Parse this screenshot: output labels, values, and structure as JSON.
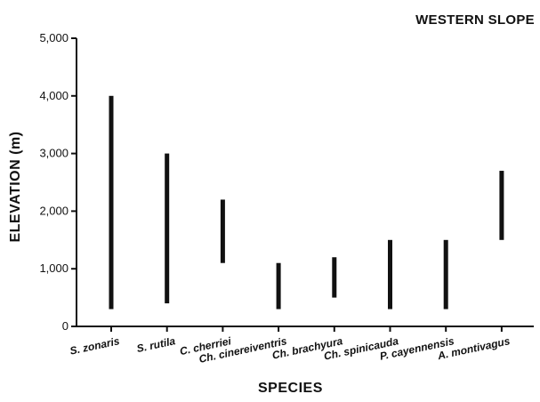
{
  "chart_data": {
    "type": "range-bar",
    "title": "WESTERN SLOPE",
    "xlabel": "SPECIES",
    "ylabel": "ELEVATION (m)",
    "ylim": [
      0,
      5000
    ],
    "yticks": [
      0,
      1000,
      2000,
      3000,
      4000,
      5000
    ],
    "ytick_labels": [
      "0",
      "1,000",
      "2,000",
      "3,000",
      "4,000",
      "5,000"
    ],
    "categories": [
      "S. zonaris",
      "S. rutila",
      "C. cherriei",
      "Ch. cinereiventris",
      "Ch. brachyura",
      "Ch. spinicauda",
      "P. cayennensis",
      "A. montivagus"
    ],
    "ranges": [
      [
        300,
        4000
      ],
      [
        400,
        3000
      ],
      [
        1100,
        2200
      ],
      [
        300,
        1100
      ],
      [
        500,
        1200
      ],
      [
        300,
        1500
      ],
      [
        300,
        1500
      ],
      [
        1500,
        2700
      ]
    ],
    "grid": false,
    "bar_color": "#111111"
  }
}
